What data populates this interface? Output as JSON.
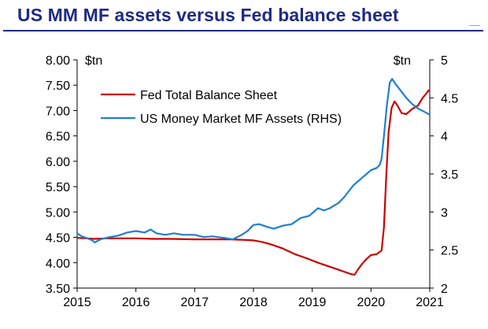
{
  "chart_data": {
    "type": "line",
    "title": "US MM MF assets versus Fed balance sheet",
    "left_unit": "$tn",
    "right_unit": "$tn",
    "legend_position": "top-left",
    "grid": false,
    "x_ticks": [
      "2015",
      "2016",
      "2017",
      "2018",
      "2019",
      "2020",
      "2021"
    ],
    "xlim": [
      2015,
      2021
    ],
    "y_left": {
      "lim": [
        3.5,
        8.0
      ],
      "ticks": [
        "3.50",
        "4.00",
        "4.50",
        "5.00",
        "5.50",
        "6.00",
        "6.50",
        "7.00",
        "7.50",
        "8.00"
      ]
    },
    "y_right": {
      "lim": [
        2,
        5
      ],
      "ticks": [
        "2",
        "2.5",
        "3",
        "3.5",
        "4",
        "4.5",
        "5"
      ]
    },
    "series": [
      {
        "name": "Fed Total Balance Sheet",
        "axis": "left",
        "color": "#cc0000",
        "points": [
          [
            2015.0,
            4.49
          ],
          [
            2015.15,
            4.48
          ],
          [
            2015.3,
            4.47
          ],
          [
            2015.5,
            4.48
          ],
          [
            2015.7,
            4.48
          ],
          [
            2016.0,
            4.48
          ],
          [
            2016.3,
            4.47
          ],
          [
            2016.6,
            4.47
          ],
          [
            2017.0,
            4.46
          ],
          [
            2017.3,
            4.46
          ],
          [
            2017.6,
            4.46
          ],
          [
            2017.85,
            4.45
          ],
          [
            2018.0,
            4.44
          ],
          [
            2018.15,
            4.41
          ],
          [
            2018.3,
            4.36
          ],
          [
            2018.5,
            4.28
          ],
          [
            2018.7,
            4.17
          ],
          [
            2018.9,
            4.09
          ],
          [
            2019.1,
            4.0
          ],
          [
            2019.3,
            3.92
          ],
          [
            2019.5,
            3.84
          ],
          [
            2019.65,
            3.78
          ],
          [
            2019.72,
            3.76
          ],
          [
            2019.78,
            3.87
          ],
          [
            2019.85,
            3.98
          ],
          [
            2019.92,
            4.07
          ],
          [
            2020.0,
            4.15
          ],
          [
            2020.1,
            4.17
          ],
          [
            2020.18,
            4.24
          ],
          [
            2020.22,
            4.7
          ],
          [
            2020.26,
            5.7
          ],
          [
            2020.3,
            6.57
          ],
          [
            2020.35,
            7.05
          ],
          [
            2020.4,
            7.18
          ],
          [
            2020.45,
            7.1
          ],
          [
            2020.52,
            6.95
          ],
          [
            2020.6,
            6.93
          ],
          [
            2020.7,
            7.03
          ],
          [
            2020.8,
            7.1
          ],
          [
            2020.88,
            7.25
          ],
          [
            2020.95,
            7.35
          ],
          [
            2020.98,
            7.4
          ],
          [
            2021.0,
            7.38
          ]
        ]
      },
      {
        "name": "US Money Market MF Assets (RHS)",
        "axis": "right",
        "color": "#1f7fd0",
        "points": [
          [
            2015.0,
            2.72
          ],
          [
            2015.08,
            2.68
          ],
          [
            2015.15,
            2.66
          ],
          [
            2015.25,
            2.63
          ],
          [
            2015.3,
            2.6
          ],
          [
            2015.4,
            2.64
          ],
          [
            2015.55,
            2.67
          ],
          [
            2015.7,
            2.69
          ],
          [
            2015.85,
            2.73
          ],
          [
            2016.0,
            2.75
          ],
          [
            2016.15,
            2.73
          ],
          [
            2016.25,
            2.77
          ],
          [
            2016.35,
            2.72
          ],
          [
            2016.5,
            2.7
          ],
          [
            2016.65,
            2.72
          ],
          [
            2016.8,
            2.7
          ],
          [
            2017.0,
            2.7
          ],
          [
            2017.15,
            2.67
          ],
          [
            2017.3,
            2.68
          ],
          [
            2017.5,
            2.66
          ],
          [
            2017.65,
            2.64
          ],
          [
            2017.8,
            2.7
          ],
          [
            2017.9,
            2.75
          ],
          [
            2018.0,
            2.83
          ],
          [
            2018.1,
            2.84
          ],
          [
            2018.25,
            2.8
          ],
          [
            2018.35,
            2.78
          ],
          [
            2018.5,
            2.82
          ],
          [
            2018.65,
            2.84
          ],
          [
            2018.8,
            2.92
          ],
          [
            2018.95,
            2.95
          ],
          [
            2019.1,
            3.05
          ],
          [
            2019.2,
            3.02
          ],
          [
            2019.3,
            3.05
          ],
          [
            2019.45,
            3.12
          ],
          [
            2019.55,
            3.2
          ],
          [
            2019.7,
            3.35
          ],
          [
            2019.85,
            3.45
          ],
          [
            2020.0,
            3.55
          ],
          [
            2020.1,
            3.58
          ],
          [
            2020.15,
            3.62
          ],
          [
            2020.18,
            3.7
          ],
          [
            2020.22,
            4.0
          ],
          [
            2020.27,
            4.4
          ],
          [
            2020.32,
            4.7
          ],
          [
            2020.36,
            4.75
          ],
          [
            2020.42,
            4.68
          ],
          [
            2020.5,
            4.6
          ],
          [
            2020.6,
            4.5
          ],
          [
            2020.7,
            4.42
          ],
          [
            2020.8,
            4.36
          ],
          [
            2020.9,
            4.32
          ],
          [
            2021.0,
            4.28
          ]
        ]
      }
    ]
  }
}
